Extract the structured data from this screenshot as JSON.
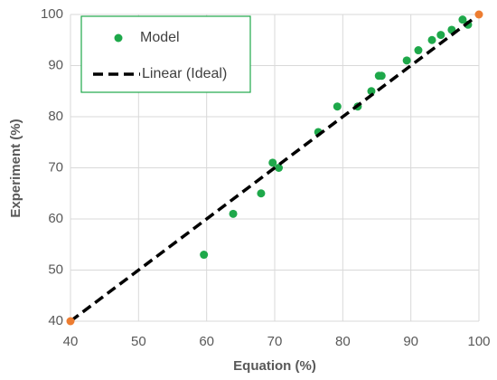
{
  "chart_data": {
    "type": "scatter",
    "x_label": "Equation (%)",
    "y_label": "Experiment (%)",
    "xlim": [
      40,
      100
    ],
    "xticks": [
      40,
      50,
      60,
      70,
      80,
      90,
      100
    ],
    "ylim": [
      40,
      100
    ],
    "yticks": [
      40,
      50,
      60,
      70,
      80,
      90,
      100
    ],
    "grid": true,
    "legend": "upper left",
    "series": [
      {
        "name": "Model",
        "color": "#1ea84a",
        "x": [
          59.6,
          63.9,
          68.0,
          69.7,
          70.6,
          76.4,
          79.2,
          82.2,
          84.2,
          85.3,
          85.7,
          89.4,
          91.1,
          93.1,
          94.4,
          96.0,
          97.6,
          98.4
        ],
        "y": [
          53,
          61,
          65,
          71,
          70,
          77,
          82,
          82,
          85,
          88,
          88,
          91,
          93,
          95,
          96,
          97,
          99,
          98
        ]
      },
      {
        "name": "Linear (Ideal)",
        "color": "#000000",
        "line": "dashed",
        "marker_color": "#ed7d31",
        "x": [
          40,
          100
        ],
        "y": [
          40,
          100
        ]
      }
    ]
  }
}
